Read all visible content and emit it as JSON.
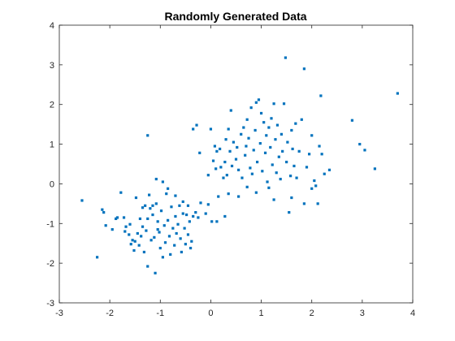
{
  "chart_data": {
    "type": "scatter",
    "title": "Randomly Generated Data",
    "xlabel": "",
    "ylabel": "",
    "xlim": [
      -3,
      4
    ],
    "ylim": [
      -3,
      4
    ],
    "xticks": [
      -3,
      -2,
      -1,
      0,
      1,
      2,
      3,
      4
    ],
    "yticks": [
      -3,
      -2,
      -1,
      0,
      1,
      2,
      3,
      4
    ],
    "grid": false,
    "marker_color": "#0072BD",
    "series": [
      {
        "points": [
          [
            -2.55,
            -0.42
          ],
          [
            -2.25,
            -1.85
          ],
          [
            -2.15,
            -0.65
          ],
          [
            -2.12,
            -0.72
          ],
          [
            -2.08,
            -1.05
          ],
          [
            -1.95,
            -1.15
          ],
          [
            -1.85,
            -0.85
          ],
          [
            -1.78,
            -0.22
          ],
          [
            -1.72,
            -0.85
          ],
          [
            -1.68,
            -1.08
          ],
          [
            -1.62,
            -1.28
          ],
          [
            -1.58,
            -1.52
          ],
          [
            -1.55,
            -1.42
          ],
          [
            -1.52,
            -1.68
          ],
          [
            -1.48,
            -0.35
          ],
          [
            -1.45,
            -1.25
          ],
          [
            -1.42,
            -1.55
          ],
          [
            -1.4,
            -0.88
          ],
          [
            -1.38,
            -1.32
          ],
          [
            -1.35,
            -1.08
          ],
          [
            -1.32,
            -1.72
          ],
          [
            -1.3,
            -0.55
          ],
          [
            -1.28,
            -1.18
          ],
          [
            -1.25,
            -2.08
          ],
          [
            -1.22,
            -0.28
          ],
          [
            -1.2,
            -0.62
          ],
          [
            -1.18,
            -1.42
          ],
          [
            -1.15,
            -0.78
          ],
          [
            -1.12,
            -1.35
          ],
          [
            -1.1,
            -2.25
          ],
          [
            -1.08,
            -0.5
          ],
          [
            -1.05,
            -0.95
          ],
          [
            -1.02,
            -1.22
          ],
          [
            -1.0,
            -1.62
          ],
          [
            -0.98,
            -0.68
          ],
          [
            -0.95,
            -1.85
          ],
          [
            -0.92,
            -1.05
          ],
          [
            -0.9,
            -1.48
          ],
          [
            -0.88,
            -0.25
          ],
          [
            -0.85,
            -0.92
          ],
          [
            -0.82,
            -1.32
          ],
          [
            -0.8,
            -1.78
          ],
          [
            -0.78,
            -0.58
          ],
          [
            -0.75,
            -1.12
          ],
          [
            -0.72,
            -1.55
          ],
          [
            -0.7,
            -0.82
          ],
          [
            -0.68,
            -1.25
          ],
          [
            -0.65,
            -1.02
          ],
          [
            -0.62,
            -0.55
          ],
          [
            -0.6,
            -1.38
          ],
          [
            -0.58,
            -1.72
          ],
          [
            -0.55,
            -0.45
          ],
          [
            -0.52,
            -1.12
          ],
          [
            -0.5,
            -1.52
          ],
          [
            -0.48,
            -0.78
          ],
          [
            -0.45,
            -1.28
          ],
          [
            -0.42,
            -0.95
          ],
          [
            -0.4,
            -1.62
          ],
          [
            -0.38,
            -1.45
          ],
          [
            -0.35,
            -0.82
          ],
          [
            -1.25,
            1.22
          ],
          [
            -1.08,
            0.12
          ],
          [
            -0.95,
            0.05
          ],
          [
            -0.85,
            -0.12
          ],
          [
            -1.15,
            -0.55
          ],
          [
            -1.05,
            -1.15
          ],
          [
            -1.6,
            -1.02
          ],
          [
            -1.5,
            -1.45
          ],
          [
            -1.7,
            -1.2
          ],
          [
            -1.88,
            -0.88
          ],
          [
            -1.35,
            -0.6
          ],
          [
            -1.25,
            -0.88
          ],
          [
            -0.7,
            -0.3
          ],
          [
            -0.55,
            -0.75
          ],
          [
            -0.45,
            -0.55
          ],
          [
            -0.3,
            -0.72
          ],
          [
            -0.25,
            -0.85
          ],
          [
            -0.2,
            -0.48
          ],
          [
            -0.1,
            -0.75
          ],
          [
            0.02,
            -0.95
          ],
          [
            0.12,
            -0.95
          ],
          [
            0.28,
            -0.82
          ],
          [
            -0.05,
            -0.52
          ],
          [
            0.15,
            -0.32
          ],
          [
            -0.35,
            1.38
          ],
          [
            -0.28,
            1.48
          ],
          [
            -0.22,
            0.78
          ],
          [
            -0.05,
            0.22
          ],
          [
            0.0,
            1.38
          ],
          [
            0.05,
            0.58
          ],
          [
            0.08,
            0.95
          ],
          [
            0.1,
            0.38
          ],
          [
            0.12,
            0.82
          ],
          [
            0.18,
            0.88
          ],
          [
            0.2,
            0.42
          ],
          [
            0.25,
            0.15
          ],
          [
            0.28,
            0.55
          ],
          [
            0.3,
            1.12
          ],
          [
            0.32,
            0.22
          ],
          [
            0.35,
            1.38
          ],
          [
            0.38,
            0.82
          ],
          [
            0.4,
            1.85
          ],
          [
            0.42,
            0.45
          ],
          [
            0.45,
            1.05
          ],
          [
            0.5,
            0.62
          ],
          [
            0.52,
            0.92
          ],
          [
            0.55,
            0.35
          ],
          [
            0.6,
            1.25
          ],
          [
            0.62,
            0.15
          ],
          [
            0.65,
            1.42
          ],
          [
            0.68,
            0.72
          ],
          [
            0.7,
            0.95
          ],
          [
            0.72,
            1.62
          ],
          [
            0.75,
            1.15
          ],
          [
            0.78,
            0.4
          ],
          [
            0.8,
            1.92
          ],
          [
            0.82,
            0.25
          ],
          [
            0.85,
            0.85
          ],
          [
            0.88,
            1.35
          ],
          [
            0.9,
            2.05
          ],
          [
            0.92,
            0.55
          ],
          [
            0.95,
            2.12
          ],
          [
            0.98,
            1.02
          ],
          [
            1.0,
            1.78
          ],
          [
            1.02,
            0.32
          ],
          [
            1.05,
            1.55
          ],
          [
            1.08,
            0.78
          ],
          [
            1.1,
            1.22
          ],
          [
            1.12,
            0.05
          ],
          [
            1.15,
            1.42
          ],
          [
            1.18,
            0.92
          ],
          [
            1.2,
            1.65
          ],
          [
            1.22,
            0.48
          ],
          [
            1.25,
            2.02
          ],
          [
            1.28,
            1.12
          ],
          [
            1.3,
            0.28
          ],
          [
            1.32,
            1.48
          ],
          [
            1.35,
            0.68
          ],
          [
            1.38,
            0.12
          ],
          [
            1.4,
            1.25
          ],
          [
            1.42,
            0.82
          ],
          [
            1.45,
            2.02
          ],
          [
            1.48,
            3.18
          ],
          [
            1.5,
            0.55
          ],
          [
            1.52,
            1.05
          ],
          [
            1.55,
            -0.72
          ],
          [
            1.58,
            0.2
          ],
          [
            1.6,
            1.35
          ],
          [
            1.62,
            0.88
          ],
          [
            1.65,
            0.45
          ],
          [
            1.68,
            1.52
          ],
          [
            1.7,
            0.15
          ],
          [
            1.75,
            0.82
          ],
          [
            1.8,
            1.62
          ],
          [
            1.85,
            2.9
          ],
          [
            1.9,
            0.42
          ],
          [
            1.95,
            0.75
          ],
          [
            2.0,
            1.22
          ],
          [
            2.05,
            0.08
          ],
          [
            2.08,
            -0.05
          ],
          [
            2.12,
            -0.5
          ],
          [
            2.15,
            0.95
          ],
          [
            2.18,
            2.22
          ],
          [
            2.2,
            0.75
          ],
          [
            2.25,
            0.25
          ],
          [
            2.35,
            0.35
          ],
          [
            2.8,
            1.6
          ],
          [
            2.95,
            1.0
          ],
          [
            3.05,
            0.85
          ],
          [
            3.25,
            0.38
          ],
          [
            3.7,
            2.28
          ],
          [
            1.85,
            -0.5
          ],
          [
            1.15,
            -0.1
          ],
          [
            0.72,
            -0.08
          ],
          [
            0.55,
            -0.32
          ],
          [
            0.35,
            -0.25
          ],
          [
            0.9,
            -0.22
          ],
          [
            1.25,
            -0.4
          ],
          [
            1.6,
            -0.35
          ],
          [
            2.0,
            -0.12
          ]
        ]
      }
    ]
  }
}
